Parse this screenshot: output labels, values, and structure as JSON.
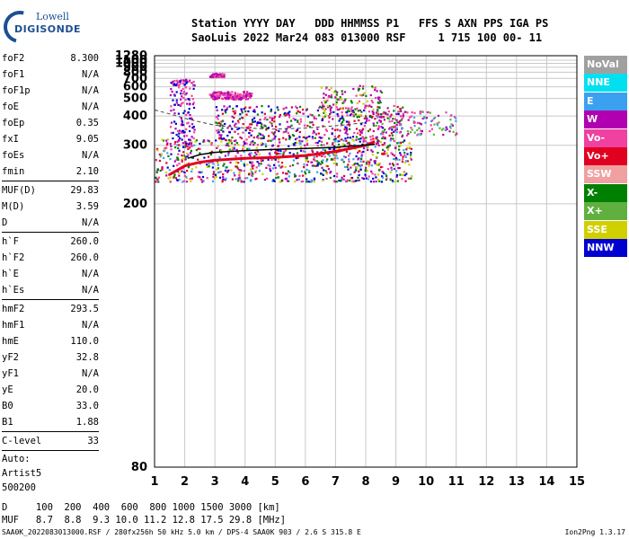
{
  "logo": {
    "line1": "Lowell",
    "line2": "DIGISONDE"
  },
  "header": {
    "line1": "Station YYYY DAY   DDD HHMMSS P1   FFS S AXN PPS IGA PS",
    "line2": "SaoLuis 2022 Mar24 083 013000 RSF     1 715 100 00- 11"
  },
  "params": {
    "group1": [
      {
        "k": "foF2",
        "v": "8.300"
      },
      {
        "k": "foF1",
        "v": "N/A"
      },
      {
        "k": "foF1p",
        "v": "N/A"
      },
      {
        "k": "foE",
        "v": "N/A"
      },
      {
        "k": "foEp",
        "v": "0.35"
      },
      {
        "k": "fxI",
        "v": "9.05"
      },
      {
        "k": "foEs",
        "v": "N/A"
      },
      {
        "k": "fmin",
        "v": "2.10"
      }
    ],
    "group2": [
      {
        "k": "MUF(D)",
        "v": "29.83"
      },
      {
        "k": "M(D)",
        "v": "3.59"
      },
      {
        "k": "D",
        "v": "N/A"
      }
    ],
    "group3": [
      {
        "k": "h`F",
        "v": "260.0"
      },
      {
        "k": "h`F2",
        "v": "260.0"
      },
      {
        "k": "h`E",
        "v": "N/A"
      },
      {
        "k": "h`Es",
        "v": "N/A"
      }
    ],
    "group4": [
      {
        "k": "hmF2",
        "v": "293.5"
      },
      {
        "k": "hmF1",
        "v": "N/A"
      },
      {
        "k": "hmE",
        "v": "110.0"
      },
      {
        "k": "yF2",
        "v": "32.8"
      },
      {
        "k": "yF1",
        "v": "N/A"
      },
      {
        "k": "yE",
        "v": "20.0"
      },
      {
        "k": "B0",
        "v": "33.0"
      },
      {
        "k": "B1",
        "v": "1.88"
      }
    ],
    "clevel": {
      "k": "C-level",
      "v": "33"
    },
    "auto": [
      "Auto:",
      "Artist5",
      "500200"
    ]
  },
  "legend": [
    {
      "label": "NoVal",
      "color": "#a0a0a0"
    },
    {
      "label": "NNE",
      "color": "#00e0f0"
    },
    {
      "label": "E",
      "color": "#3ca0f0"
    },
    {
      "label": "W",
      "color": "#b000b0"
    },
    {
      "label": "Vo-",
      "color": "#f040a0"
    },
    {
      "label": "Vo+",
      "color": "#e00020"
    },
    {
      "label": "SSW",
      "color": "#f0a0a0"
    },
    {
      "label": "X-",
      "color": "#008000"
    },
    {
      "label": "X+",
      "color": "#60b040"
    },
    {
      "label": "SSE",
      "color": "#d0d000"
    },
    {
      "label": "NNW",
      "color": "#0000d0"
    }
  ],
  "footer": {
    "line1": "D     100  200  400  600  800 1000 1500 3000 [km]",
    "line2": "MUF   8.7  8.8  9.3 10.0 11.2 12.8 17.5 29.8 [MHz]",
    "line3": "SAA0K_2022083013000.RSF / 280fx256h 50 kHz 5.0 km / DPS-4 SAA0K 903 / 2.6 S 315.8 E",
    "version": "Ion2Png 1.3.17"
  },
  "chart_data": {
    "type": "scatter",
    "xlim": [
      1,
      15
    ],
    "ylim": [
      80,
      1280
    ],
    "yscale": "reciprocal",
    "x_ticks": [
      1,
      2,
      3,
      4,
      5,
      6,
      7,
      8,
      9,
      10,
      11,
      12,
      13,
      14,
      15
    ],
    "y_ticks": [
      80,
      200,
      300,
      400,
      500,
      600,
      700,
      800,
      900,
      1000,
      1100,
      1280
    ],
    "grid": true,
    "trace_F2": {
      "x": [
        1.5,
        2.0,
        2.5,
        3.0,
        4.0,
        5.0,
        6.0,
        7.0,
        7.5,
        8.0,
        8.3
      ],
      "y": [
        240,
        255,
        262,
        266,
        270,
        272,
        276,
        285,
        292,
        300,
        310
      ]
    },
    "profile": {
      "x": [
        2.1,
        2.5,
        3.0,
        3.5,
        4.0,
        5.0,
        6.0,
        7.0,
        7.5,
        8.0,
        8.3
      ],
      "y": [
        270,
        278,
        283,
        285,
        287,
        290,
        292,
        295,
        298,
        300,
        303
      ]
    },
    "dashed_profile": {
      "x": [
        1.0,
        1.5,
        2.0,
        2.5,
        3.0,
        4.0,
        5.0,
        6.0,
        7.0,
        8.0
      ],
      "y": [
        430,
        410,
        390,
        375,
        362,
        352,
        348,
        352,
        360,
        372
      ]
    },
    "echo_regions": [
      {
        "x": [
          1.0,
          9.5
        ],
        "y": [
          230,
          320
        ],
        "colors": [
          "#b000b0",
          "#f040a0",
          "#e00020",
          "#008000",
          "#0000d0",
          "#d0d000",
          "#3ca0f0"
        ],
        "n": 900
      },
      {
        "x": [
          1.5,
          2.3
        ],
        "y": [
          300,
          700
        ],
        "colors": [
          "#b000b0",
          "#f040a0",
          "#0000d0"
        ],
        "n": 150
      },
      {
        "x": [
          2.8,
          4.2
        ],
        "y": [
          500,
          560
        ],
        "colors": [
          "#b000b0",
          "#f040a0"
        ],
        "n": 160
      },
      {
        "x": [
          2.8,
          3.3
        ],
        "y": [
          730,
          790
        ],
        "colors": [
          "#b000b0",
          "#f040a0"
        ],
        "n": 50
      },
      {
        "x": [
          3.0,
          9.2
        ],
        "y": [
          320,
          460
        ],
        "colors": [
          "#b000b0",
          "#f040a0",
          "#0000d0",
          "#e00020",
          "#008000"
        ],
        "n": 450
      },
      {
        "x": [
          6.5,
          8.5
        ],
        "y": [
          400,
          620
        ],
        "colors": [
          "#b000b0",
          "#f040a0",
          "#d0d000",
          "#008000"
        ],
        "n": 120
      },
      {
        "x": [
          8.3,
          11.0
        ],
        "y": [
          330,
          430
        ],
        "colors": [
          "#b000b0",
          "#60b040",
          "#3ca0f0",
          "#f040a0"
        ],
        "n": 130
      }
    ]
  }
}
